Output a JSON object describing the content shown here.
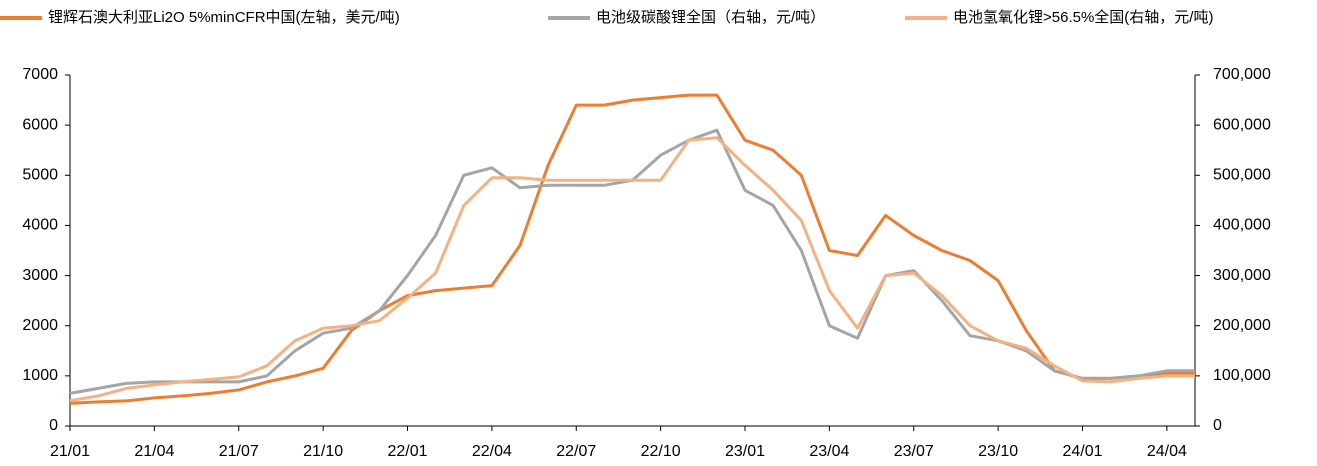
{
  "chart_data": {
    "type": "line",
    "categories": [
      "21/01",
      null,
      null,
      "21/04",
      null,
      null,
      "21/07",
      null,
      null,
      "21/10",
      null,
      null,
      "22/01",
      null,
      null,
      "22/04",
      null,
      null,
      "22/07",
      null,
      null,
      "22/10",
      null,
      null,
      "23/01",
      null,
      null,
      "23/04",
      null,
      null,
      "23/07",
      null,
      null,
      "23/10",
      null,
      null,
      "24/01",
      null,
      null,
      "24/04",
      null
    ],
    "series": [
      {
        "name": "锂辉石澳大利亚Li2O 5%minCFR中国(左轴，美元/吨)",
        "color": "#ED7D31",
        "axis": "y",
        "values": [
          450,
          480,
          500,
          560,
          600,
          650,
          720,
          880,
          1000,
          1150,
          1900,
          2300,
          2600,
          2700,
          2750,
          2800,
          3600,
          5200,
          6400,
          6400,
          6500,
          6550,
          6600,
          6600,
          5700,
          5500,
          5000,
          3500,
          3400,
          4200,
          3800,
          3500,
          3300,
          2900,
          1900,
          1100,
          950,
          950,
          1000,
          1050,
          1050
        ]
      },
      {
        "name": "电池级碳酸锂全国（右轴，元/吨）",
        "color": "#A5A5A5",
        "axis": "y2",
        "values": [
          65000,
          75000,
          85000,
          88000,
          88000,
          88000,
          88000,
          100000,
          150000,
          185000,
          195000,
          230000,
          300000,
          380000,
          500000,
          515000,
          475000,
          480000,
          480000,
          480000,
          490000,
          540000,
          570000,
          590000,
          470000,
          440000,
          350000,
          200000,
          175000,
          300000,
          310000,
          250000,
          180000,
          170000,
          150000,
          110000,
          95000,
          95000,
          100000,
          110000,
          110000
        ]
      },
      {
        "name": "电池氢氧化锂>56.5%全国(右轴，元/吨)",
        "color": "#F4B183",
        "axis": "y2",
        "values": [
          50000,
          60000,
          75000,
          82000,
          88000,
          93000,
          98000,
          120000,
          170000,
          195000,
          200000,
          210000,
          255000,
          305000,
          440000,
          495000,
          495000,
          490000,
          490000,
          490000,
          490000,
          490000,
          570000,
          575000,
          520000,
          470000,
          410000,
          270000,
          195000,
          300000,
          305000,
          260000,
          200000,
          170000,
          155000,
          120000,
          90000,
          88000,
          95000,
          100000,
          100000
        ]
      }
    ],
    "ylim": [
      0,
      7000
    ],
    "yticks": [
      0,
      1000,
      2000,
      3000,
      4000,
      5000,
      6000,
      7000
    ],
    "y2lim": [
      0,
      700000
    ],
    "y2ticks": [
      0,
      {
        "value": 100000,
        "label": "100,000"
      },
      {
        "value": 200000,
        "label": "200,000"
      },
      {
        "value": 300000,
        "label": "300,000"
      },
      {
        "value": 400000,
        "label": "400,000"
      },
      {
        "value": 500000,
        "label": "500,000"
      },
      {
        "value": 600000,
        "label": "600,000"
      },
      {
        "value": 700000,
        "label": "700,000"
      }
    ],
    "legend": "top"
  }
}
